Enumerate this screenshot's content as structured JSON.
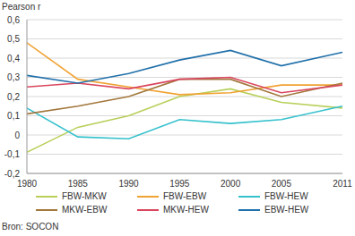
{
  "chart_data": {
    "type": "line",
    "y_label": "Pearson r",
    "source": "Bron: SOCON",
    "x": [
      1980,
      1985,
      1990,
      1995,
      2000,
      2005,
      2011
    ],
    "xlim": [
      1980,
      2011
    ],
    "xticks": [
      1980,
      1985,
      1990,
      1995,
      2000,
      2005,
      2011
    ],
    "ylim": [
      -0.2,
      0.6
    ],
    "yticks": [
      {
        "value": -0.2,
        "label": "-0,2"
      },
      {
        "value": -0.1,
        "label": "-0,1"
      },
      0,
      {
        "value": 0.1,
        "label": "0,1"
      },
      {
        "value": 0.2,
        "label": "0,2"
      },
      {
        "value": 0.3,
        "label": "0,3"
      },
      {
        "value": 0.4,
        "label": "0,4"
      },
      {
        "value": 0.5,
        "label": "0,5"
      },
      {
        "value": 0.6,
        "label": "0,6"
      }
    ],
    "grid": true,
    "legend": "bottom",
    "series": [
      {
        "name": "FBW-MKW",
        "color": "#b8cf5a",
        "values": [
          -0.09,
          0.04,
          0.1,
          0.2,
          0.24,
          0.17,
          0.14
        ]
      },
      {
        "name": "FBW-EBW",
        "color": "#f0a232",
        "values": [
          0.48,
          0.29,
          0.25,
          0.21,
          0.22,
          0.26,
          0.26
        ]
      },
      {
        "name": "FBW-HEW",
        "color": "#35c1cc",
        "values": [
          0.14,
          -0.01,
          -0.02,
          0.08,
          0.06,
          0.08,
          0.15
        ]
      },
      {
        "name": "MKW-EBW",
        "color": "#a3773c",
        "values": [
          0.11,
          0.15,
          0.2,
          0.29,
          0.29,
          0.2,
          0.27
        ]
      },
      {
        "name": "MKW-HEW",
        "color": "#d9465e",
        "values": [
          0.25,
          0.27,
          0.24,
          0.29,
          0.3,
          0.22,
          0.26
        ]
      },
      {
        "name": "EBW-HEW",
        "color": "#2170aa",
        "values": [
          0.31,
          0.27,
          0.32,
          0.39,
          0.44,
          0.36,
          0.43
        ]
      }
    ]
  }
}
